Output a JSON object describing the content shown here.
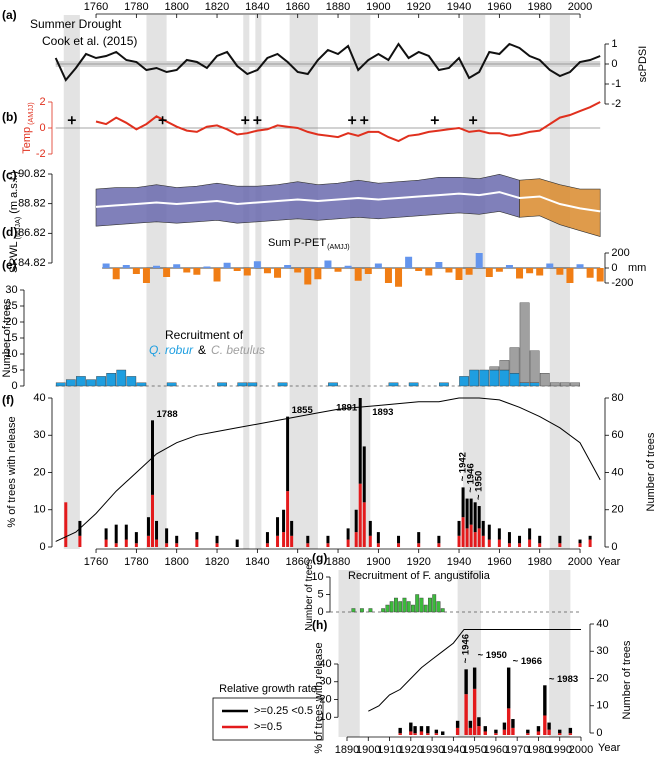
{
  "shaded_periods": [
    [
      1744,
      1752
    ],
    [
      1785,
      1795
    ],
    [
      1833,
      1836
    ],
    [
      1839,
      1842
    ],
    [
      1856,
      1870
    ],
    [
      1886,
      1896
    ],
    [
      1942,
      1953
    ],
    [
      1985,
      1995
    ]
  ],
  "chart_data": [
    {
      "type": "line",
      "label": "(a)",
      "title": "Summer Drought",
      "subtitle": "Cook et al. (2015)",
      "ylabel": "scPDSI",
      "color": "#111111",
      "xlim": [
        1740,
        2010
      ],
      "xticks": [
        1760,
        1780,
        1800,
        1820,
        1840,
        1860,
        1880,
        1900,
        1920,
        1940,
        1960,
        1980,
        2000
      ],
      "ylim": [
        -2.2,
        2.2
      ],
      "yticks": [
        1,
        0,
        -1,
        -2
      ],
      "x": [
        1740,
        1745,
        1750,
        1755,
        1760,
        1765,
        1770,
        1775,
        1780,
        1785,
        1790,
        1795,
        1800,
        1805,
        1810,
        1815,
        1820,
        1825,
        1830,
        1835,
        1840,
        1845,
        1850,
        1855,
        1860,
        1865,
        1870,
        1875,
        1880,
        1885,
        1890,
        1895,
        1900,
        1905,
        1910,
        1915,
        1920,
        1925,
        1930,
        1935,
        1940,
        1945,
        1950,
        1955,
        1960,
        1965,
        1970,
        1975,
        1980,
        1985,
        1990,
        1995,
        2000,
        2005,
        2010
      ],
      "values": [
        0.3,
        -0.8,
        -0.2,
        0.5,
        0.3,
        0.4,
        0.6,
        0.2,
        0.1,
        -0.3,
        -0.2,
        -0.4,
        -0.3,
        0.2,
        0.1,
        -0.2,
        0.4,
        0.6,
        -0.1,
        -0.5,
        -0.3,
        0.3,
        0.5,
        0.1,
        -0.4,
        -0.5,
        0.2,
        0.7,
        0.5,
        0.9,
        -0.3,
        0.2,
        0.5,
        0.2,
        1.0,
        0.3,
        0.6,
        0.4,
        -0.3,
        -0.2,
        0.3,
        -0.7,
        -0.4,
        0.6,
        0.5,
        1.0,
        0.8,
        0.4,
        0.2,
        -0.3,
        -0.6,
        -0.4,
        0.1,
        0.2,
        0.4
      ]
    },
    {
      "type": "line",
      "label": "(b)",
      "ylabel": "Temp",
      "ylabel_sub": "(AMJJ)",
      "color": "#e0301e",
      "xlim": [
        1740,
        2010
      ],
      "ylim": [
        -2.5,
        2.5
      ],
      "yticks": [
        2,
        0,
        -2
      ],
      "x": [
        1760,
        1765,
        1770,
        1775,
        1780,
        1785,
        1790,
        1795,
        1800,
        1805,
        1810,
        1815,
        1820,
        1825,
        1830,
        1835,
        1840,
        1845,
        1850,
        1855,
        1860,
        1865,
        1870,
        1875,
        1880,
        1885,
        1890,
        1895,
        1900,
        1905,
        1910,
        1915,
        1920,
        1925,
        1930,
        1935,
        1940,
        1945,
        1950,
        1955,
        1960,
        1965,
        1970,
        1975,
        1980,
        1985,
        1990,
        1995,
        2000,
        2005,
        2010
      ],
      "values": [
        0.5,
        0.3,
        0.8,
        0.4,
        -0.1,
        0.3,
        0.9,
        0.5,
        0.1,
        -0.2,
        -0.3,
        0.1,
        0.2,
        -0.1,
        -0.5,
        -0.4,
        -0.2,
        -0.1,
        0.2,
        0.1,
        0,
        -0.3,
        -0.5,
        -0.6,
        -0.7,
        -0.4,
        -0.6,
        -0.3,
        -0.3,
        -0.7,
        -1.0,
        -0.6,
        -0.5,
        -0.3,
        -0.2,
        -0.1,
        0,
        -0.3,
        -0.2,
        -0.4,
        -0.4,
        -0.6,
        -0.5,
        -0.3,
        -0.2,
        0.3,
        0.8,
        1.0,
        1.3,
        1.6,
        2.0
      ],
      "markers": {
        "x": [
          1748,
          1793,
          1834,
          1840,
          1887,
          1893,
          1928,
          1947
        ],
        "values": [
          0.6,
          0.6,
          0.6,
          0.6,
          0.6,
          0.6,
          0.6,
          0.6
        ]
      }
    },
    {
      "type": "band",
      "label": "(c)",
      "ylabel": "SRWL",
      "ylabel_sub": "(MJJA)",
      "ylabel_unit": "(m a.s.l.)",
      "color": "#ffffff",
      "xlim": [
        1740,
        2010
      ],
      "ylim": [
        84.82,
        90.82
      ],
      "yticks": [
        90.82,
        88.82,
        86.82,
        84.82
      ],
      "band_colors": [
        {
          "color": "#6a6aae",
          "from": 1760,
          "to": 1970
        },
        {
          "color": "#d98a2b",
          "from": 1970,
          "to": 2010
        }
      ],
      "x": [
        1760,
        1770,
        1780,
        1790,
        1800,
        1810,
        1820,
        1830,
        1840,
        1850,
        1860,
        1870,
        1880,
        1890,
        1900,
        1910,
        1920,
        1930,
        1940,
        1950,
        1960,
        1970,
        1980,
        1990,
        2000,
        2010
      ],
      "values": [
        88.6,
        88.7,
        88.8,
        88.9,
        88.8,
        88.9,
        89.0,
        88.8,
        88.9,
        89.0,
        89.1,
        89.0,
        89.1,
        89.2,
        89.1,
        89.2,
        89.3,
        89.4,
        89.5,
        89.4,
        89.6,
        89.2,
        89.3,
        88.8,
        88.5,
        88.3
      ],
      "upper": [
        89.8,
        89.9,
        89.9,
        90.1,
        89.9,
        90.0,
        90.2,
        90.0,
        90.0,
        90.1,
        90.3,
        90.1,
        90.2,
        90.4,
        90.2,
        90.3,
        90.4,
        90.6,
        90.6,
        90.5,
        90.8,
        90.4,
        90.5,
        90.1,
        89.8,
        89.8
      ],
      "lower": [
        87.3,
        87.4,
        87.5,
        87.6,
        87.5,
        87.6,
        87.7,
        87.5,
        87.6,
        87.7,
        87.8,
        87.7,
        87.8,
        87.9,
        87.8,
        87.9,
        88.0,
        88.1,
        88.2,
        88.1,
        88.3,
        87.9,
        88.0,
        87.4,
        87.0,
        86.6
      ]
    },
    {
      "type": "bar",
      "label": "(d)",
      "title": "Sum P-PET",
      "title_sub": "(AMJJ)",
      "ylabel": "mm",
      "positive_color": "#6495ed",
      "negative_color": "#f07d14",
      "xlim": [
        1740,
        2010
      ],
      "ylim": [
        -300,
        200
      ],
      "yticks": [
        200,
        0,
        -200
      ],
      "x": [
        1765,
        1770,
        1775,
        1780,
        1785,
        1790,
        1795,
        1800,
        1805,
        1810,
        1815,
        1820,
        1825,
        1830,
        1835,
        1840,
        1845,
        1850,
        1855,
        1860,
        1865,
        1870,
        1875,
        1880,
        1885,
        1890,
        1895,
        1900,
        1905,
        1910,
        1915,
        1920,
        1925,
        1930,
        1935,
        1940,
        1945,
        1950,
        1955,
        1960,
        1965,
        1970,
        1975,
        1980,
        1985,
        1990,
        1995,
        2000,
        2005,
        2010
      ],
      "values": [
        60,
        -150,
        40,
        -80,
        -200,
        30,
        -120,
        50,
        -60,
        -90,
        20,
        -180,
        70,
        -40,
        -100,
        90,
        -70,
        -130,
        40,
        -60,
        -220,
        -150,
        100,
        -50,
        30,
        -170,
        -80,
        60,
        -200,
        -250,
        150,
        -40,
        -100,
        80,
        -60,
        -160,
        -90,
        200,
        -120,
        -50,
        40,
        -140,
        -70,
        -100,
        60,
        -90,
        -200,
        50,
        -130,
        -180
      ]
    },
    {
      "type": "histogram",
      "label": "(e)",
      "ylabel": "Number of trees",
      "legend_title": "Recruitment of",
      "legend_joiner": "&",
      "xlim": [
        1740,
        2010
      ],
      "ylim": [
        0,
        30
      ],
      "yticks": [
        0,
        5,
        10,
        15,
        20,
        25,
        30
      ],
      "bins": [
        1740,
        1745,
        1750,
        1755,
        1760,
        1765,
        1770,
        1775,
        1780,
        1785,
        1790,
        1795,
        1800,
        1805,
        1810,
        1815,
        1820,
        1825,
        1830,
        1835,
        1840,
        1845,
        1850,
        1855,
        1860,
        1865,
        1870,
        1875,
        1880,
        1885,
        1890,
        1895,
        1900,
        1905,
        1910,
        1915,
        1920,
        1925,
        1930,
        1935,
        1940,
        1945,
        1950,
        1955,
        1960,
        1965,
        1970,
        1975,
        1980,
        1985,
        1990,
        1995,
        2000
      ],
      "series": [
        {
          "name": "Q. robur",
          "color": "#1e9ee0",
          "values": [
            1,
            2,
            3,
            2,
            3,
            4,
            5,
            3,
            1,
            0,
            0,
            1,
            0,
            0,
            0,
            0,
            1,
            0,
            1,
            1,
            0,
            0,
            1,
            0,
            0,
            0,
            0,
            1,
            0,
            0,
            0,
            0,
            0,
            1,
            0,
            1,
            0,
            0,
            1,
            0,
            3,
            5,
            5,
            5,
            5,
            4,
            1,
            1,
            0,
            0,
            0,
            0
          ]
        },
        {
          "name": "C. betulus",
          "color": "#a0a0a0",
          "values": [
            0,
            0,
            0,
            0,
            0,
            0,
            0,
            0,
            0,
            0,
            0,
            0,
            0,
            0,
            0,
            0,
            0,
            0,
            0,
            0,
            0,
            0,
            0,
            0,
            0,
            0,
            0,
            0,
            0,
            0,
            0,
            0,
            0,
            0,
            0,
            0,
            0,
            0,
            0,
            0,
            0,
            0,
            0,
            1,
            3,
            8,
            25,
            10,
            4,
            1,
            1,
            1
          ]
        }
      ]
    },
    {
      "type": "bar",
      "label": "(f)",
      "ylabel": "% of trees with release",
      "y2label": "Number of trees",
      "xlabel": "Year",
      "legend_title": "Relative growth rate",
      "xlim": [
        1740,
        2010
      ],
      "xticks": [
        1760,
        1780,
        1800,
        1820,
        1840,
        1860,
        1880,
        1900,
        1920,
        1940,
        1960,
        1980,
        2000
      ],
      "ylim": [
        0,
        40
      ],
      "yticks": [
        0,
        10,
        20,
        30,
        40
      ],
      "y2lim": [
        0,
        80
      ],
      "y2ticks": [
        0,
        20,
        40,
        60,
        80
      ],
      "x": [
        1745,
        1752,
        1765,
        1770,
        1775,
        1780,
        1786,
        1788,
        1790,
        1795,
        1800,
        1810,
        1820,
        1830,
        1845,
        1850,
        1853,
        1855,
        1857,
        1865,
        1875,
        1885,
        1889,
        1891,
        1893,
        1896,
        1900,
        1910,
        1920,
        1930,
        1940,
        1942,
        1944,
        1946,
        1948,
        1950,
        1952,
        1955,
        1960,
        1965,
        1970,
        1975,
        1980,
        1990,
        2000,
        2005
      ],
      "series": [
        {
          "name": ">=0.5",
          "color": "#e31a1c",
          "values": [
            12,
            3,
            2,
            1,
            2,
            1,
            3,
            14,
            2,
            1,
            1,
            2,
            1,
            0,
            1,
            3,
            4,
            15,
            3,
            1,
            1,
            2,
            4,
            17,
            12,
            3,
            1,
            1,
            1,
            1,
            3,
            8,
            5,
            6,
            4,
            5,
            3,
            2,
            2,
            1,
            1,
            2,
            1,
            1,
            1,
            2
          ]
        },
        {
          "name": ">=0.25 <0.5",
          "color": "#000000",
          "values": [
            0,
            4,
            3,
            5,
            4,
            3,
            5,
            20,
            5,
            4,
            2,
            2,
            2,
            2,
            3,
            5,
            6,
            20,
            4,
            2,
            2,
            3,
            6,
            23,
            15,
            4,
            3,
            2,
            3,
            2,
            4,
            8,
            8,
            7,
            8,
            6,
            4,
            4,
            3,
            3,
            2,
            3,
            2,
            2,
            1,
            1
          ]
        },
        {
          "axis": "y2",
          "color": "#000000",
          "x": [
            1740,
            1750,
            1760,
            1770,
            1780,
            1790,
            1800,
            1810,
            1820,
            1830,
            1840,
            1850,
            1860,
            1870,
            1880,
            1890,
            1900,
            1910,
            1920,
            1930,
            1940,
            1950,
            1960,
            1970,
            1980,
            1990,
            2000,
            2010
          ],
          "values": [
            3,
            8,
            18,
            30,
            40,
            50,
            56,
            60,
            62,
            64,
            66,
            68,
            70,
            72,
            74,
            75,
            76,
            77,
            78,
            78,
            80,
            80,
            79,
            75,
            70,
            64,
            56,
            36
          ]
        }
      ],
      "annotations": [
        {
          "text": "1788",
          "x": 1788
        },
        {
          "text": "1855",
          "x": 1855
        },
        {
          "text": "1891",
          "x": 1891
        },
        {
          "text": "1893",
          "x": 1893
        },
        {
          "text": "~ 1942",
          "x": 1942
        },
        {
          "text": "~ 1946",
          "x": 1946
        },
        {
          "text": "~ 1950",
          "x": 1950
        }
      ]
    },
    {
      "type": "histogram",
      "label": "(g)",
      "title": "Recruitment of F. angustifolia",
      "ylabel": "Number of trees",
      "color": "#3cba3c",
      "xlim": [
        1890,
        2000
      ],
      "ylim": [
        0,
        10
      ],
      "yticks": [
        0,
        5,
        10
      ],
      "bins": [
        1890,
        1892,
        1894,
        1896,
        1898,
        1900,
        1902,
        1904,
        1906,
        1908,
        1910,
        1912,
        1914,
        1916,
        1918,
        1920,
        1922,
        1924,
        1926,
        1928,
        1930,
        1932,
        1934,
        1936,
        1938,
        1940
      ],
      "values": [
        0,
        1,
        0,
        1,
        0,
        1,
        0,
        0,
        1,
        2,
        3,
        4,
        3,
        4,
        3,
        2,
        5,
        4,
        2,
        4,
        5,
        3,
        1,
        0,
        0
      ]
    },
    {
      "type": "bar",
      "label": "(h)",
      "ylabel": "% of trees with release",
      "y2label": "Number of trees",
      "xlabel": "Year",
      "xlim": [
        1890,
        2000
      ],
      "xticks": [
        1890,
        1900,
        1910,
        1920,
        1930,
        1940,
        1950,
        1960,
        1970,
        1980,
        1990,
        2000
      ],
      "ylim": [
        0,
        40
      ],
      "yticks": [
        10,
        20,
        30,
        40
      ],
      "y2lim": [
        0,
        40
      ],
      "y2ticks": [
        0,
        10,
        20,
        30,
        40
      ],
      "x": [
        1915,
        1920,
        1922,
        1925,
        1928,
        1932,
        1935,
        1942,
        1946,
        1948,
        1950,
        1952,
        1955,
        1960,
        1964,
        1966,
        1968,
        1975,
        1980,
        1983,
        1985,
        1990,
        1995
      ],
      "series": [
        {
          "color": "#e31a1c",
          "values": [
            1,
            2,
            1,
            2,
            1,
            1,
            0,
            4,
            23,
            4,
            26,
            5,
            2,
            1,
            3,
            15,
            4,
            1,
            2,
            11,
            3,
            1,
            1
          ]
        },
        {
          "color": "#000000",
          "values": [
            3,
            5,
            4,
            3,
            4,
            2,
            2,
            4,
            14,
            4,
            12,
            5,
            3,
            2,
            4,
            23,
            5,
            2,
            3,
            17,
            4,
            2,
            3
          ]
        },
        {
          "axis": "y2",
          "color": "#000000",
          "x": [
            1900,
            1905,
            1910,
            1915,
            1920,
            1925,
            1930,
            1935,
            1940,
            1945,
            1950,
            2000
          ],
          "values": [
            8,
            10,
            14,
            16,
            20,
            24,
            27,
            30,
            33,
            38,
            38,
            38
          ]
        }
      ],
      "annotations": [
        {
          "text": "~ 1946",
          "x": 1946
        },
        {
          "text": "~ 1950",
          "x": 1950
        },
        {
          "text": "~ 1966",
          "x": 1966
        },
        {
          "text": "~ 1983",
          "x": 1983
        }
      ]
    }
  ]
}
